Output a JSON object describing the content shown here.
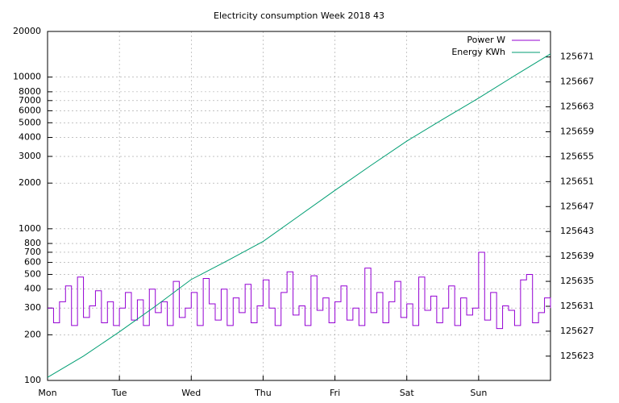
{
  "chart_data": {
    "type": "line",
    "title": "Electricity consumption Week 2018 43",
    "xlim": [
      0,
      168
    ],
    "xticks": [
      {
        "value": 0,
        "label": "Mon"
      },
      {
        "value": 24,
        "label": "Tue"
      },
      {
        "value": 48,
        "label": "Wed"
      },
      {
        "value": 72,
        "label": "Thu"
      },
      {
        "value": 96,
        "label": "Fri"
      },
      {
        "value": 120,
        "label": "Sat"
      },
      {
        "value": 144,
        "label": "Sun"
      }
    ],
    "ylim": [
      100,
      20000
    ],
    "ylog": true,
    "yticks": [
      100,
      200,
      300,
      400,
      500,
      600,
      700,
      800,
      1000,
      2000,
      3000,
      4000,
      5000,
      6000,
      7000,
      8000,
      10000,
      20000
    ],
    "y2lim": [
      125619.1,
      125675.1
    ],
    "y2ticks": [
      125623,
      125627,
      125631,
      125635,
      125639,
      125643,
      125647,
      125651,
      125655,
      125659,
      125663,
      125667,
      125671
    ],
    "grid": true,
    "legend": "top-right",
    "series": [
      {
        "name": "Power W",
        "color": "#9400d3",
        "steps": true,
        "x": [
          0,
          2,
          4,
          6,
          8,
          10,
          12,
          14,
          16,
          18,
          20,
          22,
          24,
          26,
          28,
          30,
          32,
          34,
          36,
          38,
          40,
          42,
          44,
          46,
          48,
          50,
          52,
          54,
          56,
          58,
          60,
          62,
          64,
          66,
          68,
          70,
          72,
          74,
          76,
          78,
          80,
          82,
          84,
          86,
          88,
          90,
          92,
          94,
          96,
          98,
          100,
          102,
          104,
          106,
          108,
          110,
          112,
          114,
          116,
          118,
          120,
          122,
          124,
          126,
          128,
          130,
          132,
          134,
          136,
          138,
          140,
          142,
          144,
          146,
          148,
          150,
          152,
          154,
          156,
          158,
          160,
          162,
          164,
          166,
          168
        ],
        "values": [
          300,
          240,
          330,
          420,
          230,
          480,
          260,
          310,
          390,
          240,
          330,
          230,
          300,
          380,
          250,
          340,
          230,
          400,
          280,
          330,
          230,
          450,
          260,
          300,
          380,
          230,
          470,
          320,
          250,
          400,
          230,
          350,
          280,
          430,
          240,
          310,
          460,
          300,
          230,
          380,
          520,
          270,
          310,
          230,
          490,
          290,
          350,
          240,
          330,
          420,
          250,
          300,
          230,
          550,
          280,
          380,
          240,
          330,
          450,
          260,
          320,
          230,
          480,
          290,
          360,
          240,
          300,
          420,
          230,
          350,
          270,
          300,
          700,
          250,
          380,
          220,
          310,
          290,
          230,
          460,
          500,
          240,
          280,
          350,
          300
        ]
      },
      {
        "name": "Energy KWh",
        "color": "#009e73",
        "axis": "y2",
        "x": [
          0,
          12,
          24,
          36,
          48,
          60,
          72,
          84,
          96,
          108,
          120,
          132,
          144,
          156,
          168
        ],
        "values": [
          125619.6,
          125623.0,
          125626.9,
          125631.0,
          125635.3,
          125638.3,
          125641.4,
          125645.5,
          125649.6,
          125653.6,
          125657.5,
          125661.0,
          125664.4,
          125668.0,
          125671.5
        ]
      }
    ]
  }
}
